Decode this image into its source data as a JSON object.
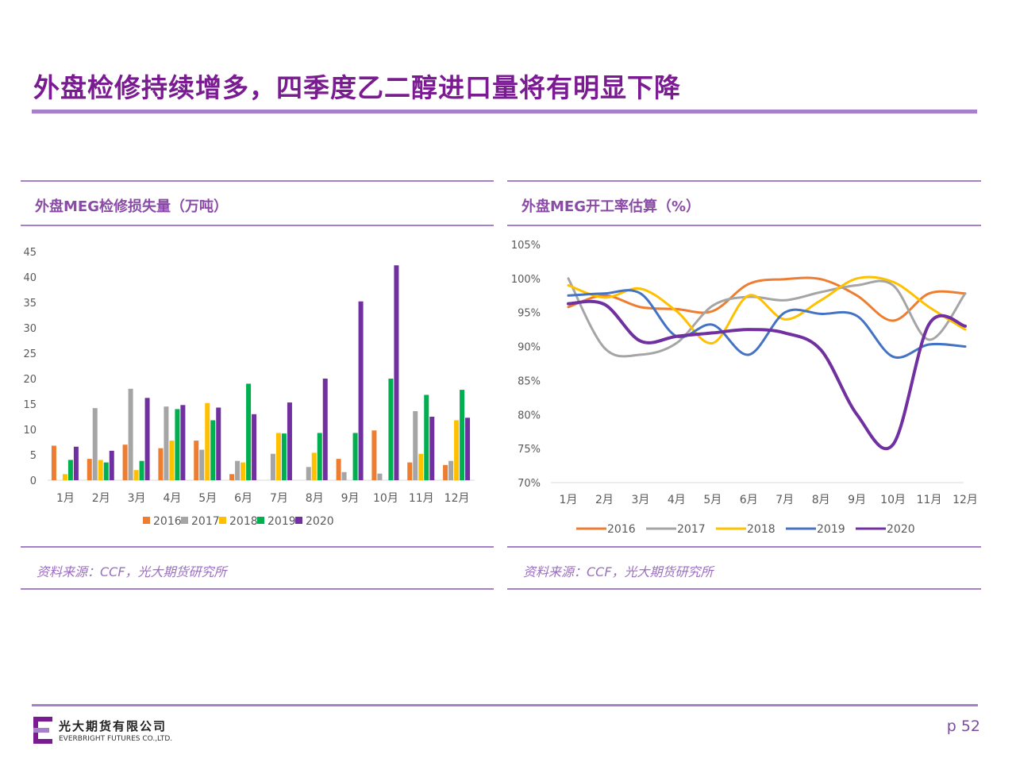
{
  "title": "外盘检修持续增多，四季度乙二醇进口量将有明显下降",
  "left_panel": {
    "title": "外盘MEG检修损失量（万吨）",
    "source": "资料来源：CCF，光大期货研究所"
  },
  "right_panel": {
    "title": "外盘MEG开工率估算（%）",
    "source": "资料来源：CCF，光大期货研究所"
  },
  "footer": {
    "company_cn": "光大期货有限公司",
    "company_en": "EVERBRIGHT FUTURES CO.,LTD.",
    "page": "p 52"
  },
  "colors": {
    "accent": "#7a1b92",
    "rule": "#a77fca"
  },
  "chart_data": [
    {
      "type": "bar",
      "categories": [
        "1月",
        "2月",
        "3月",
        "4月",
        "5月",
        "6月",
        "7月",
        "8月",
        "9月",
        "10月",
        "11月",
        "12月"
      ],
      "ylim": [
        0,
        45
      ],
      "yticks": [
        0,
        5,
        10,
        15,
        20,
        25,
        30,
        35,
        40,
        45
      ],
      "legend": "bottom",
      "series": [
        {
          "name": "2016",
          "color": "#ed7d31",
          "values": [
            6.8,
            4.2,
            7.0,
            6.3,
            7.8,
            1.2,
            0,
            0,
            4.2,
            9.8,
            3.5,
            3.0
          ]
        },
        {
          "name": "2017",
          "color": "#a5a5a5",
          "values": [
            0,
            14.2,
            18.0,
            14.5,
            6.0,
            3.8,
            5.2,
            2.6,
            1.6,
            1.3,
            13.6,
            3.8
          ]
        },
        {
          "name": "2018",
          "color": "#ffc000",
          "values": [
            1.2,
            4.0,
            2.0,
            7.8,
            15.2,
            3.5,
            9.3,
            5.4,
            0,
            0,
            5.2,
            11.8
          ]
        },
        {
          "name": "2019",
          "color": "#00b050",
          "values": [
            4.0,
            3.5,
            3.8,
            14.0,
            11.8,
            19.0,
            9.2,
            9.3,
            9.3,
            20.0,
            16.8,
            17.8
          ]
        },
        {
          "name": "2020",
          "color": "#7030a0",
          "values": [
            6.6,
            5.8,
            16.2,
            14.8,
            14.3,
            13.0,
            15.3,
            20.0,
            35.2,
            42.3,
            12.5,
            12.3
          ]
        }
      ]
    },
    {
      "type": "line",
      "categories": [
        "1月",
        "2月",
        "3月",
        "4月",
        "5月",
        "6月",
        "7月",
        "8月",
        "9月",
        "10月",
        "11月",
        "12月"
      ],
      "ylim": [
        70,
        105
      ],
      "yticks": [
        "70%",
        "75%",
        "80%",
        "85%",
        "90%",
        "95%",
        "100%",
        "105%"
      ],
      "legend": "bottom",
      "series": [
        {
          "name": "2016",
          "color": "#ed7d31",
          "values": [
            95.8,
            97.5,
            95.8,
            95.5,
            95.2,
            99.2,
            99.9,
            99.9,
            97.5,
            93.8,
            97.8,
            97.8
          ]
        },
        {
          "name": "2017",
          "color": "#a5a5a5",
          "values": [
            100.0,
            89.8,
            88.8,
            90.5,
            96.0,
            97.3,
            96.8,
            98.0,
            99.0,
            99.0,
            91.0,
            97.8
          ]
        },
        {
          "name": "2018",
          "color": "#ffc000",
          "values": [
            99.0,
            97.2,
            98.5,
            95.2,
            90.5,
            97.5,
            94.0,
            96.8,
            100.0,
            99.5,
            95.8,
            92.5
          ]
        },
        {
          "name": "2019",
          "color": "#4472c4",
          "values": [
            97.5,
            97.8,
            97.8,
            91.5,
            93.2,
            88.8,
            95.0,
            94.8,
            94.5,
            88.5,
            90.3,
            90.0
          ]
        },
        {
          "name": "2020",
          "color": "#7030a0",
          "values": [
            96.3,
            96.2,
            90.8,
            91.5,
            92.0,
            92.5,
            92.0,
            89.5,
            80.0,
            75.6,
            93.3,
            93.0
          ]
        }
      ]
    }
  ]
}
